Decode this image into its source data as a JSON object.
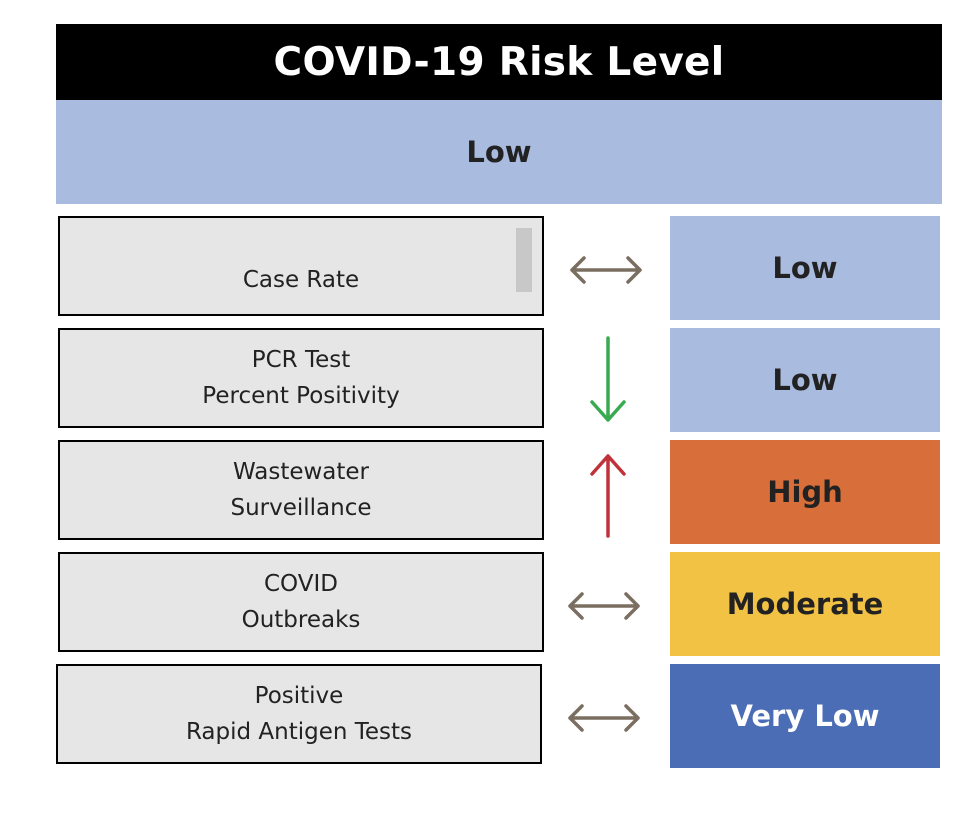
{
  "title": "COVID-19 Risk Level",
  "overall": {
    "level": "Low",
    "color": "#a9bbdf",
    "text_color": "#222222"
  },
  "indicators": [
    {
      "lines": [
        "Case Rate"
      ],
      "trend": "steady",
      "trend_icon": "left-right-arrow-icon",
      "trend_color": "#7a6e61",
      "level": "Low",
      "color": "#a9bbdf",
      "text_color": "#222222"
    },
    {
      "lines": [
        "PCR Test",
        "Percent Positivity"
      ],
      "trend": "decreasing",
      "trend_icon": "down-arrow-icon",
      "trend_color": "#3aaa50",
      "level": "Low",
      "color": "#a9bbdf",
      "text_color": "#222222"
    },
    {
      "lines": [
        "Wastewater",
        "Surveillance"
      ],
      "trend": "increasing",
      "trend_icon": "up-arrow-icon",
      "trend_color": "#c0323a",
      "level": "High",
      "color": "#d86e3a",
      "text_color": "#222222"
    },
    {
      "lines": [
        "COVID",
        "Outbreaks"
      ],
      "trend": "steady",
      "trend_icon": "left-right-arrow-icon",
      "trend_color": "#7a6e61",
      "level": "Moderate",
      "color": "#f2c244",
      "text_color": "#222222"
    },
    {
      "lines": [
        "Positive",
        "Rapid Antigen Tests"
      ],
      "trend": "steady",
      "trend_icon": "left-right-arrow-icon",
      "trend_color": "#7a6e61",
      "level": "Very Low",
      "color": "#4a6db5",
      "text_color": "#ffffff"
    }
  ]
}
